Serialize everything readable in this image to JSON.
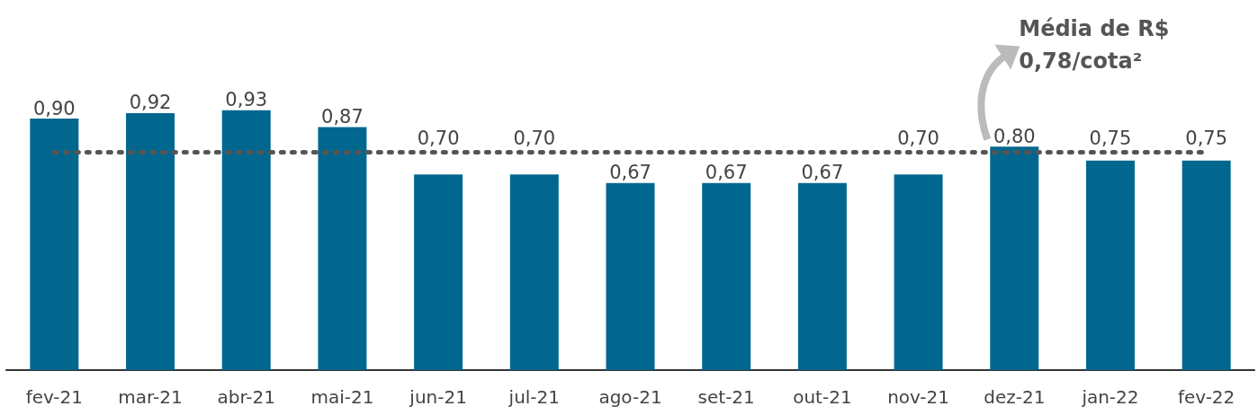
{
  "chart_data": {
    "type": "bar",
    "categories": [
      "fev-21",
      "mar-21",
      "abr-21",
      "mai-21",
      "jun-21",
      "jul-21",
      "ago-21",
      "set-21",
      "out-21",
      "nov-21",
      "dez-21",
      "jan-22",
      "fev-22"
    ],
    "values": [
      0.9,
      0.92,
      0.93,
      0.87,
      0.7,
      0.7,
      0.67,
      0.67,
      0.67,
      0.7,
      0.8,
      0.75,
      0.75
    ],
    "value_labels": [
      "0,90",
      "0,92",
      "0,93",
      "0,87",
      "0,70",
      "0,70",
      "0,67",
      "0,67",
      "0,67",
      "0,70",
      "0,80",
      "0,75",
      "0,75"
    ],
    "color": "#02678e",
    "ref_lines": [
      {
        "axis": "y",
        "value": 0.78,
        "label": "Média de R$ 0,78/cota²",
        "color": "#555555",
        "line_style": "dotted"
      }
    ],
    "marker": "none"
  }
}
